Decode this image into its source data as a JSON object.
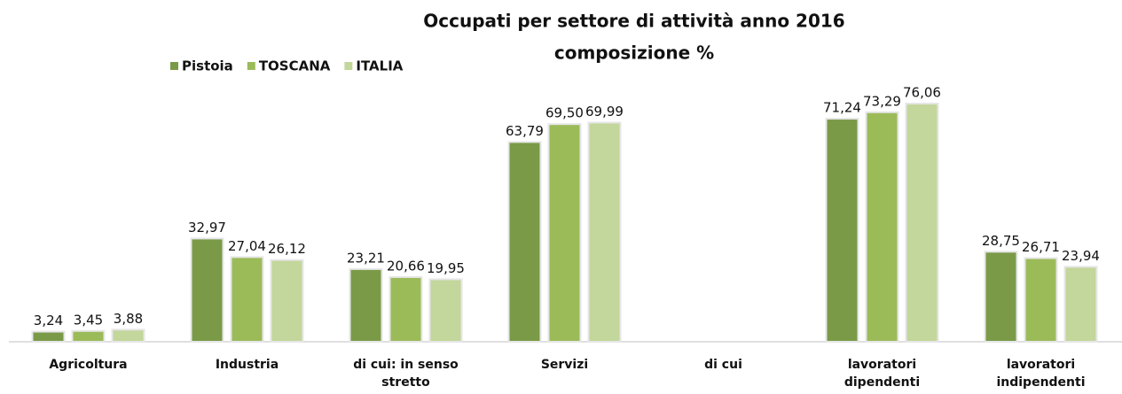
{
  "chart_data": {
    "type": "bar",
    "title": "Occupati per settore di attività anno 2016",
    "subtitle": "composizione %",
    "categories": [
      "Agricoltura",
      "Industria",
      "di cui:  in senso stretto",
      "Servizi",
      "di cui",
      "lavoratori dipendenti",
      "lavoratori indipendenti"
    ],
    "series": [
      {
        "name": "Pistoia",
        "color": "#7a9a48",
        "values": [
          3.24,
          32.97,
          23.21,
          63.79,
          null,
          71.24,
          28.75
        ],
        "value_labels": [
          "3,24",
          "32,97",
          "23,21",
          "63,79",
          null,
          "71,24",
          "28,75"
        ]
      },
      {
        "name": "TOSCANA",
        "color": "#9bbb59",
        "values": [
          3.45,
          27.04,
          20.66,
          69.5,
          null,
          73.29,
          26.71
        ],
        "value_labels": [
          "3,45",
          "27,04",
          "20,66",
          "69,50",
          null,
          "73,29",
          "26,71"
        ]
      },
      {
        "name": "ITALIA",
        "color": "#c3d69b",
        "values": [
          3.88,
          26.12,
          19.95,
          69.99,
          null,
          76.06,
          23.94
        ],
        "value_labels": [
          "3,88",
          "26,12",
          "19,95",
          "69,99",
          null,
          "76,06",
          "23,94"
        ]
      }
    ],
    "legend": "top-left"
  }
}
